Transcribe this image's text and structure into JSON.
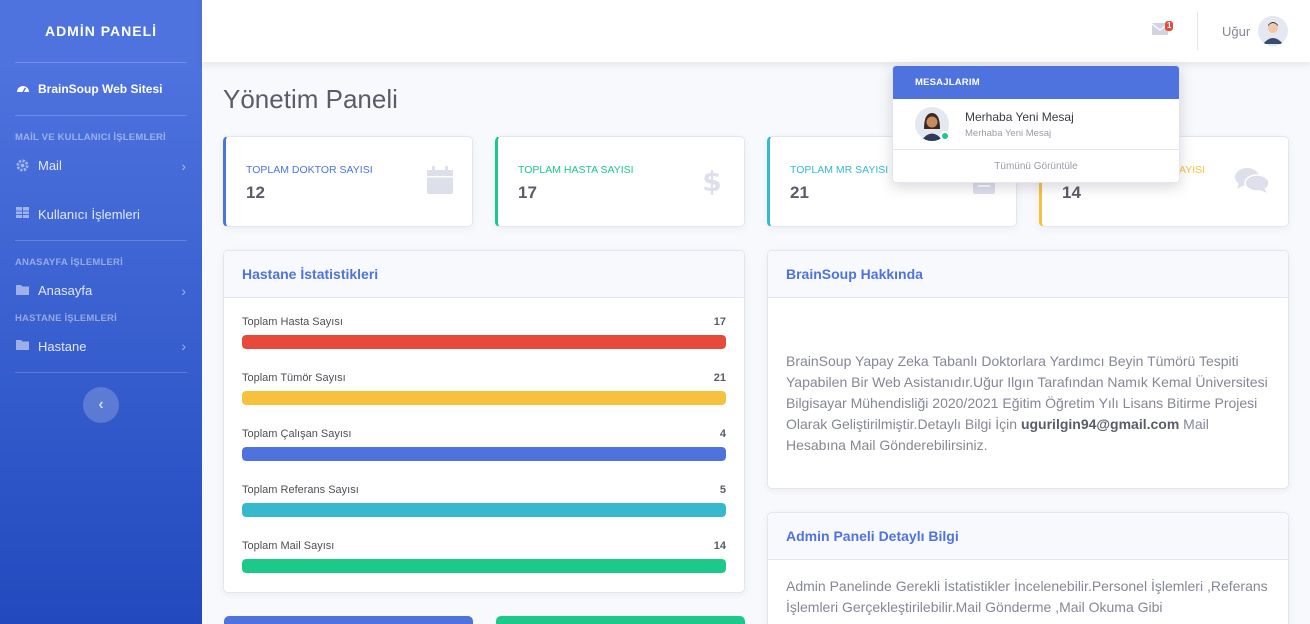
{
  "sidebar": {
    "brand": "ADMİN PANELİ",
    "site_link": "BrainSoup Web Sitesi",
    "heading_mail_users": "MAİL VE KULLANICI İŞLEMLERİ",
    "mail": "Mail",
    "users": "Kullanıcı İşlemleri",
    "heading_home": "ANASAYFA İŞLEMLERİ",
    "home": "Anasayfa",
    "heading_hospital": "HASTANE İŞLEMLERİ",
    "hospital": "Hastane"
  },
  "topbar": {
    "message_badge": "1",
    "user_name": "Uğur"
  },
  "page": {
    "title": "Yönetim Paneli"
  },
  "stats": [
    {
      "label": "TOPLAM DOKTOR SAYISI",
      "value": "12",
      "color": "#4e73df",
      "icon": "calendar-icon"
    },
    {
      "label": "TOPLAM HASTA SAYISI",
      "value": "17",
      "color": "#1cc88a",
      "icon": "dollar-icon"
    },
    {
      "label": "TOPLAM MR SAYISI",
      "value": "21",
      "color": "#36b9cc",
      "icon": "clipboard-icon"
    },
    {
      "label": "SAYISI",
      "value": "14",
      "color": "#f6c23e",
      "icon": "comments-icon"
    }
  ],
  "hospital_stats": {
    "title": "Hastane İstatistikleri",
    "rows": [
      {
        "label": "Toplam Hasta Sayısı",
        "value": "17",
        "color": "#e74a3b",
        "fill": 1
      },
      {
        "label": "Toplam Tümör Sayısı",
        "value": "21",
        "color": "#f6c23e",
        "fill": 1
      },
      {
        "label": "Toplam Çalışan Sayısı",
        "value": "4",
        "color": "#4e73df",
        "fill": 1
      },
      {
        "label": "Toplam Referans Sayısı",
        "value": "5",
        "color": "#36b9cc",
        "fill": 1
      },
      {
        "label": "Toplam Mail Sayısı",
        "value": "14",
        "color": "#1cc88a",
        "fill": 1
      }
    ]
  },
  "about": {
    "title": "BrainSoup Hakkında",
    "text": "BrainSoup Yapay Zeka Tabanlı Doktorlara Yardımcı Beyin Tümörü Tespiti Yapabilen Bir Web Asistanıdır.Uğur Ilgın Tarafından Namık Kemal Üniversitesi Bilgisayar Mühendisliği 2020/2021 Eğitim Öğretim Yılı Lisans Bitirme Projesi Olarak Geliştirilmiştir.Detaylı Bilgi İçin",
    "email": "ugurilgin94@gmail.com",
    "text_end": " Mail Hesabına Mail Gönderebilirsiniz."
  },
  "admin_info": {
    "title": "Admin Paneli Detaylı Bilgi",
    "text": "Admin Panelinde Gerekli İstatistikler İncelenebilir.Personel İşlemleri ,Referans İşlemleri Gerçekleştirilebilir.Mail Gönderme ,Mail Okuma Gibi"
  },
  "messages_dropdown": {
    "header": "MESAJLARIM",
    "items": [
      {
        "title": "Merhaba Yeni Mesaj",
        "subtitle": "Merhaba Yeni Mesaj"
      }
    ],
    "footer": "Tümünü Görüntüle"
  }
}
